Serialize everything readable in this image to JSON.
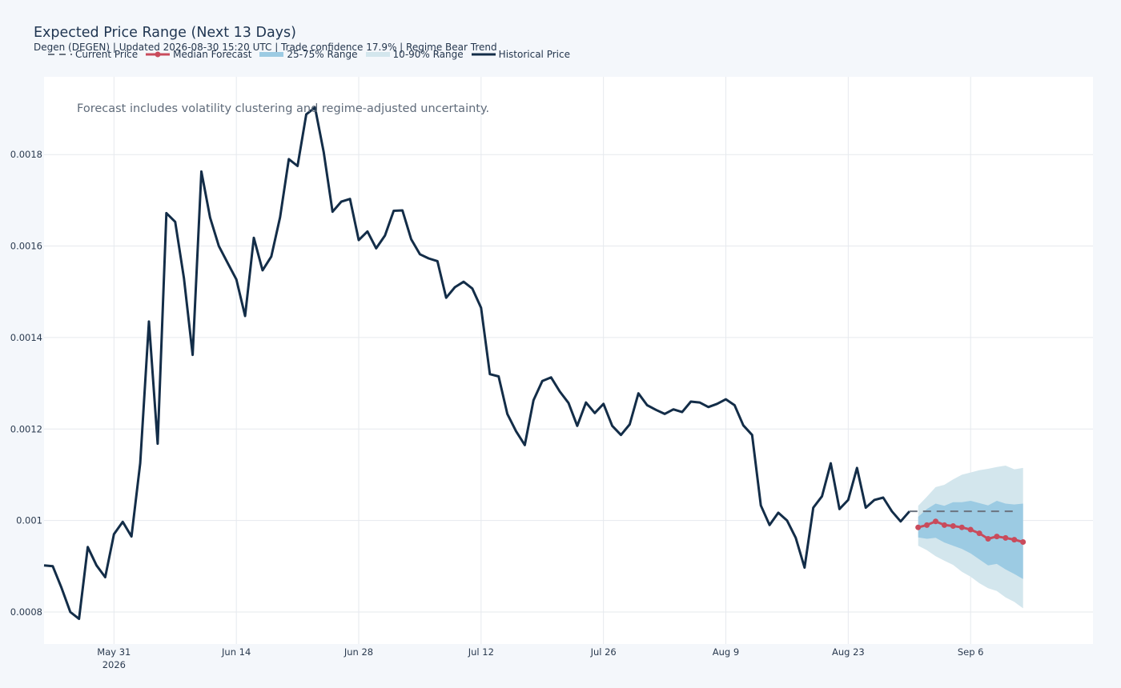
{
  "title": "Expected Price Range (Next 13 Days)",
  "subtitle": "Degen (DEGEN) | Updated 2026-08-30 15:20 UTC | Trade confidence 17.9% | Regime Bear Trend",
  "legend": {
    "current_price": "Current Price",
    "median_forecast": "Median Forecast",
    "range_25_75": "25-75% Range",
    "range_10_90": "10-90% Range",
    "historical_price": "Historical Price"
  },
  "annotation": "Forecast includes volatility clustering and regime-adjusted uncertainty.",
  "colors": {
    "historical": "#132d48",
    "median": "#c94b5c",
    "band_25_75": "#9ccbe3",
    "band_10_90": "#d3e6ed",
    "current_price": "#6b7480",
    "grid": "#e6e9ee",
    "plot_bg": "#ffffff",
    "page_bg": "#f4f7fb"
  },
  "chart_data": {
    "type": "line",
    "x_axis": {
      "type": "date",
      "range": [
        "2026-05-23",
        "2026-09-20"
      ],
      "ticks": [
        {
          "date": "2026-05-31",
          "label": "May 31",
          "sublabel": "2026"
        },
        {
          "date": "2026-06-14",
          "label": "Jun 14",
          "sublabel": ""
        },
        {
          "date": "2026-06-28",
          "label": "Jun 28",
          "sublabel": ""
        },
        {
          "date": "2026-07-12",
          "label": "Jul 12",
          "sublabel": ""
        },
        {
          "date": "2026-07-26",
          "label": "Jul 26",
          "sublabel": ""
        },
        {
          "date": "2026-08-09",
          "label": "Aug 9",
          "sublabel": ""
        },
        {
          "date": "2026-08-23",
          "label": "Aug 23",
          "sublabel": ""
        },
        {
          "date": "2026-09-06",
          "label": "Sep 6",
          "sublabel": ""
        }
      ]
    },
    "y_axis": {
      "range": [
        0.00073,
        0.00197
      ],
      "ticks": [
        {
          "value": 0.0008,
          "label": "0.0008"
        },
        {
          "value": 0.001,
          "label": "0.001"
        },
        {
          "value": 0.0012,
          "label": "0.0012"
        },
        {
          "value": 0.0014,
          "label": "0.0014"
        },
        {
          "value": 0.0016,
          "label": "0.0016"
        },
        {
          "value": 0.0018,
          "label": "0.0018"
        }
      ]
    },
    "grid": true,
    "legend_position": "top-left",
    "historical": {
      "name": "Historical Price",
      "start_date": "2026-05-23",
      "values": [
        0.000902,
        0.0009,
        0.000853,
        0.0008,
        0.000785,
        0.000942,
        0.000902,
        0.000876,
        0.00097,
        0.000997,
        0.000965,
        0.001125,
        0.001435,
        0.001168,
        0.001672,
        0.001653,
        0.00153,
        0.001362,
        0.001763,
        0.001662,
        0.0016,
        0.001563,
        0.001527,
        0.001447,
        0.001618,
        0.001547,
        0.001577,
        0.001663,
        0.00179,
        0.001775,
        0.001888,
        0.001903,
        0.001805,
        0.001675,
        0.001697,
        0.001703,
        0.001613,
        0.001632,
        0.001595,
        0.001623,
        0.001677,
        0.001678,
        0.001615,
        0.001582,
        0.001573,
        0.001567,
        0.001487,
        0.00151,
        0.001522,
        0.001507,
        0.001465,
        0.00132,
        0.001315,
        0.001233,
        0.001195,
        0.001165,
        0.001263,
        0.001305,
        0.001313,
        0.001282,
        0.001257,
        0.001207,
        0.001258,
        0.001235,
        0.001255,
        0.001207,
        0.001187,
        0.00121,
        0.001278,
        0.001252,
        0.001242,
        0.001233,
        0.001243,
        0.001237,
        0.00126,
        0.001258,
        0.001248,
        0.001255,
        0.001265,
        0.001252,
        0.001208,
        0.001187,
        0.001033,
        0.00099,
        0.001017,
        0.001,
        0.000962,
        0.000897,
        0.001028,
        0.001053,
        0.001125,
        0.001025,
        0.001045,
        0.001115,
        0.001028,
        0.001045,
        0.00105,
        0.00102,
        0.000998,
        0.00102
      ]
    },
    "current_price": {
      "name": "Current Price",
      "value": 0.00102,
      "from": "2026-08-30",
      "to": "2026-09-11"
    },
    "forecast": {
      "dates": [
        "2026-08-31",
        "2026-09-01",
        "2026-09-02",
        "2026-09-03",
        "2026-09-04",
        "2026-09-05",
        "2026-09-06",
        "2026-09-07",
        "2026-09-08",
        "2026-09-09",
        "2026-09-10",
        "2026-09-11",
        "2026-09-12"
      ],
      "median": [
        0.000985,
        0.00099,
        0.000998,
        0.00099,
        0.000988,
        0.000985,
        0.00098,
        0.000972,
        0.00096,
        0.000965,
        0.000962,
        0.000958,
        0.000953
      ],
      "p25": [
        0.000963,
        0.00096,
        0.000962,
        0.000952,
        0.000945,
        0.000938,
        0.000928,
        0.000915,
        0.000902,
        0.000905,
        0.000893,
        0.000883,
        0.000872
      ],
      "p75": [
        0.001008,
        0.001025,
        0.001037,
        0.001032,
        0.00104,
        0.00104,
        0.001043,
        0.001038,
        0.001033,
        0.001043,
        0.001037,
        0.001035,
        0.001037
      ],
      "p10": [
        0.000945,
        0.000935,
        0.000922,
        0.000912,
        0.000903,
        0.000888,
        0.000877,
        0.000863,
        0.000852,
        0.000846,
        0.000832,
        0.000822,
        0.000808
      ],
      "p90": [
        0.001032,
        0.001052,
        0.001073,
        0.001078,
        0.00109,
        0.0011,
        0.001105,
        0.00111,
        0.001113,
        0.001117,
        0.00112,
        0.001112,
        0.001115
      ]
    }
  }
}
